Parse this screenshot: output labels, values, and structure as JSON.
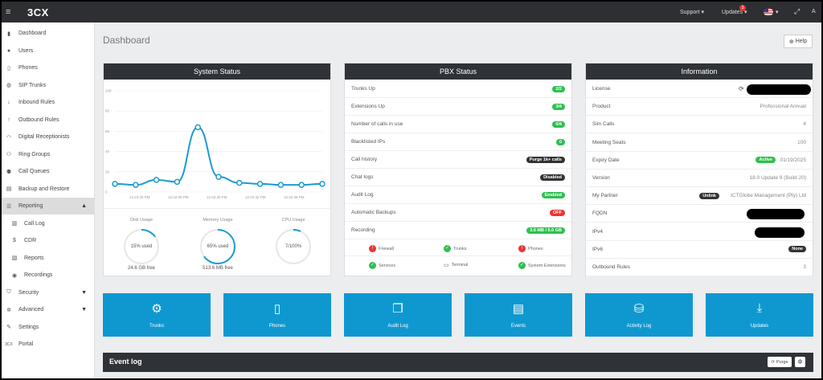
{
  "topbar": {
    "logo": "3CX",
    "support": "Support",
    "updates": "Updates",
    "updates_badge": "3",
    "user": "A"
  },
  "sidebar": {
    "items": [
      {
        "label": "Dashboard",
        "icon": "bar-chart-icon",
        "glyph": "▮"
      },
      {
        "label": "Users",
        "icon": "user-icon",
        "glyph": "●"
      },
      {
        "label": "Phones",
        "icon": "phone-icon",
        "glyph": "▯"
      },
      {
        "label": "SIP Trunks",
        "icon": "globe-icon",
        "glyph": "◍"
      },
      {
        "label": "Inbound Rules",
        "icon": "arrow-down-icon",
        "glyph": "↓"
      },
      {
        "label": "Outbound Rules",
        "icon": "arrow-up-icon",
        "glyph": "↑"
      },
      {
        "label": "Digital Receptionists",
        "icon": "headset-icon",
        "glyph": "◠"
      },
      {
        "label": "Ring Groups",
        "icon": "group-icon",
        "glyph": "⚇"
      },
      {
        "label": "Call Queues",
        "icon": "queue-icon",
        "glyph": "⚉"
      },
      {
        "label": "Backup and Restore",
        "icon": "backup-icon",
        "glyph": "▤"
      },
      {
        "label": "Reporting",
        "icon": "list-icon",
        "glyph": "☰"
      },
      {
        "label": "Call Log",
        "icon": "log-icon",
        "glyph": "▥"
      },
      {
        "label": "CDR",
        "icon": "dollar-icon",
        "glyph": "$"
      },
      {
        "label": "Reports",
        "icon": "report-icon",
        "glyph": "▧"
      },
      {
        "label": "Recordings",
        "icon": "record-icon",
        "glyph": "◉"
      },
      {
        "label": "Security",
        "icon": "shield-icon",
        "glyph": "⛉"
      },
      {
        "label": "Advanced",
        "icon": "gear-icon",
        "glyph": "✲"
      },
      {
        "label": "Settings",
        "icon": "wrench-icon",
        "glyph": "✎"
      },
      {
        "label": "Portal",
        "icon": "3cx-icon",
        "glyph": "3CX"
      }
    ]
  },
  "main": {
    "title": "Dashboard",
    "help": "Help"
  },
  "system_status": {
    "title": "System Status",
    "y_ticks": [
      "100",
      "80",
      "60",
      "40",
      "20",
      "0"
    ],
    "x_ticks": [
      "12:22:33 PM",
      "12:22:36 PM",
      "12:22:39 PM",
      "12:22:42 PM",
      "12:22:45 PM"
    ],
    "disk_label": "Disk Usage",
    "disk_value": "15% used",
    "disk_free": "24.6 GB free",
    "memory_label": "Memory Usage",
    "memory_value": "65% used",
    "memory_free": "513.6 MB free",
    "cpu_label": "CPU Usage",
    "cpu_value": "7/100%"
  },
  "chart_data": {
    "type": "line",
    "y_values": [
      8,
      7,
      12,
      10,
      64,
      15,
      9,
      8,
      7,
      7,
      8
    ],
    "ylim": [
      0,
      100
    ],
    "gauges": [
      15,
      65,
      7
    ]
  },
  "pbx_status": {
    "title": "PBX Status",
    "rows": [
      {
        "label": "Trunks Up",
        "value": "2/2",
        "color": "g"
      },
      {
        "label": "Extensions Up",
        "value": "3/4",
        "color": "g"
      },
      {
        "label": "Number of calls in use",
        "value": "0/4",
        "color": "g"
      },
      {
        "label": "Blacklisted IPs",
        "value": "0",
        "color": "g"
      },
      {
        "label": "Call history",
        "value": "Purge 1k+ calls",
        "color": "d"
      },
      {
        "label": "Chat logs",
        "value": "Disabled",
        "color": "d"
      },
      {
        "label": "Audit Log",
        "value": "Enabled",
        "color": "g"
      },
      {
        "label": "Automatic Backups",
        "value": "OFF",
        "color": "r"
      },
      {
        "label": "Recording",
        "value": "3.6 MB / 5.0 GB",
        "color": "g"
      }
    ],
    "services": [
      {
        "label": "Firewall",
        "state": "red"
      },
      {
        "label": "Trunks",
        "state": "green"
      },
      {
        "label": "Phones",
        "state": "red"
      },
      {
        "label": "Services",
        "state": "green"
      },
      {
        "label": "Terminal",
        "state": "none"
      },
      {
        "label": "System Extensions",
        "state": "green"
      }
    ]
  },
  "information": {
    "title": "Information",
    "rows": [
      {
        "label": "License",
        "value": ""
      },
      {
        "label": "Product",
        "value": "Professional Annual"
      },
      {
        "label": "Sim Calls",
        "value": "4"
      },
      {
        "label": "Meeting Seats",
        "value": "100"
      },
      {
        "label": "Expiry Date",
        "value": "01/19/2025",
        "badge": "Active"
      },
      {
        "label": "Version",
        "value": "18.0 Update 9 (Build 20)"
      },
      {
        "label": "My Partner",
        "value": "ICTGlobe Management (Pty) Ltd",
        "badge": "Unlink"
      },
      {
        "label": "FQDN",
        "value": ""
      },
      {
        "label": "IPv4",
        "value": ""
      },
      {
        "label": "IPv6",
        "value": "",
        "badge": "None"
      },
      {
        "label": "Outbound Rules",
        "value": "3"
      }
    ]
  },
  "tiles": [
    {
      "label": "Trunks",
      "glyph": "⚙",
      "icon": "gear-icon"
    },
    {
      "label": "Phones",
      "glyph": "▯",
      "icon": "phone-icon"
    },
    {
      "label": "Audit Log",
      "glyph": "❒",
      "icon": "book-icon"
    },
    {
      "label": "Events",
      "glyph": "▤",
      "icon": "file-icon"
    },
    {
      "label": "Activity Log",
      "glyph": "⛁",
      "icon": "drive-icon"
    },
    {
      "label": "Updates",
      "glyph": "⤓",
      "icon": "download-icon"
    }
  ],
  "event_log": {
    "title": "Event log",
    "purge": "Purge"
  }
}
